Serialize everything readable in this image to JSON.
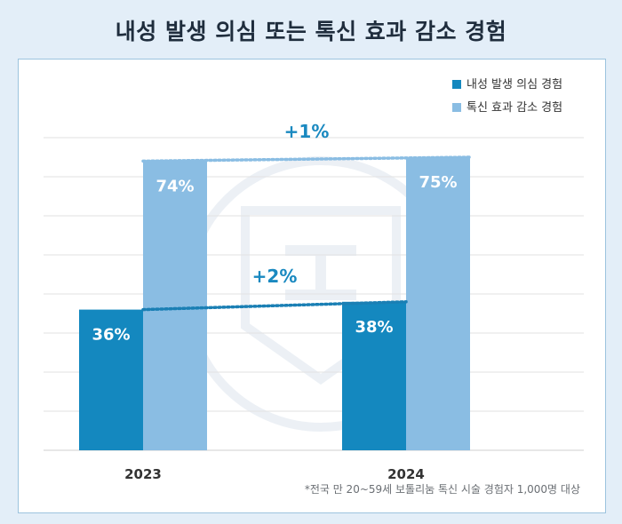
{
  "title": "내성 발생 의심 또는 톡신 효과 감소 경험",
  "footnote": "*전국 만 20~59세 보톨리눔 톡신 시술 경험자 1,000명 대상",
  "colors": {
    "background": "#e3eef8",
    "series_dark": "#1488bf",
    "series_light": "#8abde3",
    "annotation": "#1a89c0",
    "grid": "#e2e2e2"
  },
  "chart_data": {
    "type": "bar",
    "categories": [
      "2023",
      "2024"
    ],
    "series": [
      {
        "name": "내성 발생 의심 경험",
        "values": [
          36,
          38
        ],
        "labels": [
          "36%",
          "38%"
        ]
      },
      {
        "name": "톡신 효과 감소 경험",
        "values": [
          74,
          75
        ],
        "labels": [
          "74%",
          "75%"
        ]
      }
    ],
    "ylim": [
      0,
      80
    ],
    "grid": true,
    "legend": "top-right",
    "annotations": [
      {
        "text": "+1%",
        "series": 1
      },
      {
        "text": "+2%",
        "series": 0
      }
    ]
  }
}
